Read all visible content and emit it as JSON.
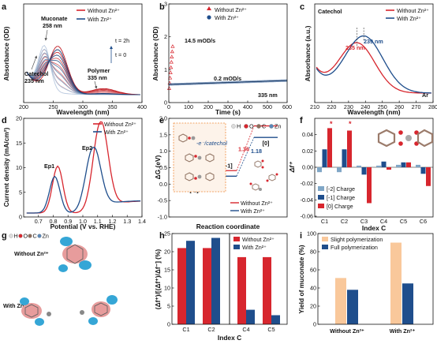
{
  "colors": {
    "without": "#d7262e",
    "with": "#1f4e8c",
    "light_blue": "#7fa6c6",
    "peach": "#f9c89b",
    "cyan": "#35a6d6",
    "pink": "#e79c9c"
  },
  "chart_data": [
    {
      "panel": "a",
      "type": "line",
      "xlabel": "Wavelength (nm)",
      "ylabel": "Absorbance (OD)",
      "xlim": [
        200,
        400
      ],
      "xticks": [
        "200",
        "250",
        "300",
        "350",
        "400"
      ],
      "legend": [
        "Without Zn²⁺",
        "With Zn²⁺"
      ],
      "annotations": {
        "muconate": "Muconate",
        "muconate_nm": "258 nm",
        "catechol": "Catechol",
        "catechol_nm": "235 nm",
        "polymer": "Polymer",
        "polymer_nm": "335 nm",
        "t_top": "t = 2h",
        "t_bottom": "t = 0"
      },
      "peaks": [
        {
          "label": "Muconate",
          "x": 258
        },
        {
          "label": "Catechol",
          "x": 235
        },
        {
          "label": "Polymer",
          "x": 335
        }
      ]
    },
    {
      "panel": "b",
      "type": "line",
      "xlabel": "Time (s)",
      "ylabel": "Absorbance (OD)",
      "xlim": [
        0,
        600
      ],
      "ylim": [
        0,
        3
      ],
      "xticks": [
        "0",
        "100",
        "200",
        "300",
        "400",
        "500",
        "600"
      ],
      "yticks": [
        "0",
        "1",
        "2",
        "3"
      ],
      "legend": [
        "Without Zn²⁺",
        "With Zn²⁺"
      ],
      "annotations": {
        "rate_without": "14.5 mOD/s",
        "rate_with": "0.2 mOD/s",
        "wavelength": "335 nm"
      },
      "series": [
        {
          "name": "Without Zn²⁺",
          "slope_mod_per_s": 14.5
        },
        {
          "name": "With Zn²⁺",
          "slope_mod_per_s": 0.2
        }
      ]
    },
    {
      "panel": "c",
      "type": "line",
      "xlabel": "Wavelength (nm)",
      "ylabel": "Absorbance (a.u.)",
      "xlim": [
        210,
        280
      ],
      "xticks": [
        "210",
        "220",
        "230",
        "240",
        "250",
        "260",
        "270",
        "280"
      ],
      "legend": [
        "Without Zn²⁺",
        "With Zn²⁺"
      ],
      "annotations": {
        "molecule": "Catechol",
        "peak_without": "235 nm",
        "peak_with": "239 nm",
        "atmosphere": "Ar"
      },
      "peaks": [
        {
          "name": "Without Zn²⁺",
          "x": 235
        },
        {
          "name": "With Zn²⁺",
          "x": 239
        }
      ]
    },
    {
      "panel": "d",
      "type": "line",
      "xlabel": "Potential (V vs. RHE)",
      "ylabel": "Current density (mA/cm²)",
      "xlim": [
        0.6,
        1.4
      ],
      "ylim": [
        0,
        20
      ],
      "xticks": [
        "0.7",
        "0.8",
        "0.9",
        "1.0",
        "1.1",
        "1.2",
        "1.3",
        "1.4"
      ],
      "yticks": [
        "0",
        "5",
        "10",
        "15",
        "20"
      ],
      "legend": [
        "Without Zn²⁺",
        "With Zn²⁺"
      ],
      "annotations": {
        "ep1": "Ep1",
        "ep2": "Ep2"
      },
      "series": [
        {
          "name": "Without Zn²⁺",
          "peaks": [
            {
              "x": 0.83,
              "y": 9.5
            },
            {
              "x": 1.12,
              "y": 18.5
            }
          ]
        },
        {
          "name": "With Zn²⁺",
          "peaks": [
            {
              "x": 0.81,
              "y": 7.4
            },
            {
              "x": 1.07,
              "y": 13.3
            }
          ]
        }
      ]
    },
    {
      "panel": "e",
      "type": "line",
      "xlabel": "Reaction coordinate",
      "ylabel": "ΔG (eV)",
      "ylim": [
        -1,
        2
      ],
      "yticks": [
        "-1.0",
        "-0.5",
        "0.0",
        "0.5",
        "1.0",
        "1.5",
        "2.0"
      ],
      "legend": [
        "Without Zn²⁺",
        "With Zn²⁺"
      ],
      "atom_legend": [
        "H",
        "O",
        "C",
        "Zn"
      ],
      "annotations": {
        "states": [
          "[-2]",
          "[-1]",
          "[0]"
        ],
        "inset": "-e⁻/catechol",
        "step1_without": "0.41",
        "step1_with": "0.24",
        "step2_without": "1.36",
        "step2_with": "1.18"
      },
      "series": [
        {
          "name": "Without Zn²⁺",
          "levels": [
            0.0,
            0.41,
            1.77
          ]
        },
        {
          "name": "With Zn²⁺",
          "levels": [
            0.0,
            0.24,
            1.42
          ]
        }
      ]
    },
    {
      "panel": "f",
      "type": "bar",
      "xlabel": "Index C",
      "ylabel": "Δf⁺",
      "categories": [
        "C1",
        "C2",
        "C3",
        "C4",
        "C5",
        "C6"
      ],
      "ylim": [
        -0.06,
        0.06
      ],
      "yticks": [
        "-0.06",
        "-0.04",
        "-0.02",
        "0.00",
        "0.02",
        "0.04"
      ],
      "series": [
        {
          "name": "[-2] Charge",
          "values": [
            -0.006,
            -0.006,
            0.002,
            0.002,
            0.003,
            0.003
          ]
        },
        {
          "name": "[-1] Charge",
          "values": [
            0.022,
            0.022,
            -0.009,
            0.007,
            0.006,
            -0.008
          ]
        },
        {
          "name": "[0] Charge",
          "values": [
            0.048,
            0.045,
            -0.044,
            -0.003,
            0.006,
            -0.023
          ]
        }
      ],
      "annotations": {
        "star_c1": "*",
        "star_c2": "*"
      }
    },
    {
      "panel": "h",
      "type": "bar",
      "xlabel": "Index C",
      "ylabel": "(Δf⁺)/[(Δf⁺)/Δf⁻] (%)",
      "categories_left": [
        "C1",
        "C2"
      ],
      "categories_right": [
        "C4",
        "C5"
      ],
      "ylim": [
        0,
        25
      ],
      "yticks": [
        "0",
        "5",
        "10",
        "15",
        "20",
        "25"
      ],
      "series": [
        {
          "name": "Without Zn²⁺",
          "values": [
            21.0,
            21.0,
            18.5,
            18.5
          ]
        },
        {
          "name": "With Zn²⁺",
          "values": [
            23.0,
            23.8,
            4.0,
            2.5
          ]
        }
      ]
    },
    {
      "panel": "i",
      "type": "bar",
      "xlabel": "",
      "ylabel": "Yield of muconate (%)",
      "categories": [
        "Without Zn²⁺",
        "With Zn²⁺"
      ],
      "ylim": [
        0,
        100
      ],
      "yticks": [
        "0",
        "20",
        "40",
        "60",
        "80",
        "100"
      ],
      "series": [
        {
          "name": "Slight polymerization",
          "values": [
            51,
            90
          ]
        },
        {
          "name": "Full polymerization",
          "values": [
            38,
            45
          ]
        }
      ]
    }
  ],
  "panel_g": {
    "label": "g",
    "atom_legend": [
      "H",
      "O",
      "C",
      "Zn"
    ],
    "without": "Without Zn²⁺",
    "with": "With Zn²⁺"
  }
}
